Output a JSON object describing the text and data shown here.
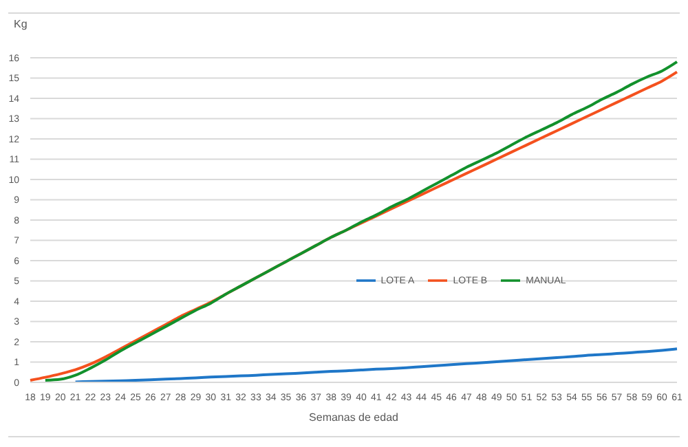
{
  "chart_data": {
    "type": "line",
    "xlabel": "Semanas de edad",
    "ylabel": "Kg",
    "categories": [
      "18",
      "19",
      "20",
      "21",
      "22",
      "23",
      "24",
      "25",
      "26",
      "27",
      "28",
      "29",
      "30",
      "31",
      "32",
      "33",
      "34",
      "35",
      "36",
      "37",
      "38",
      "39",
      "40",
      "41",
      "42",
      "43",
      "44",
      "45",
      "46",
      "47",
      "48",
      "49",
      "50",
      "51",
      "52",
      "53",
      "54",
      "55",
      "56",
      "57",
      "58",
      "59",
      "60",
      "61"
    ],
    "series": [
      {
        "name": "LOTE A",
        "color": "#1f77c8",
        "values": [
          null,
          null,
          null,
          0.02,
          0.04,
          0.06,
          0.08,
          0.1,
          0.13,
          0.16,
          0.19,
          0.22,
          0.26,
          0.29,
          0.32,
          0.35,
          0.39,
          0.42,
          0.46,
          0.5,
          0.54,
          0.57,
          0.61,
          0.65,
          0.68,
          0.72,
          0.77,
          0.82,
          0.87,
          0.92,
          0.97,
          1.02,
          1.07,
          1.12,
          1.17,
          1.22,
          1.27,
          1.33,
          1.37,
          1.42,
          1.47,
          1.52,
          1.58,
          1.65
        ]
      },
      {
        "name": "LOTE B",
        "color": "#f4511e",
        "values": [
          0.1,
          0.25,
          0.42,
          0.62,
          0.9,
          1.25,
          1.65,
          2.05,
          2.45,
          2.85,
          3.25,
          3.6,
          3.95,
          4.35,
          4.75,
          5.15,
          5.55,
          5.95,
          6.35,
          6.75,
          7.15,
          7.5,
          7.85,
          8.2,
          8.55,
          8.9,
          9.25,
          9.6,
          9.95,
          10.3,
          10.65,
          11.0,
          11.35,
          11.7,
          12.05,
          12.4,
          12.75,
          13.1,
          13.45,
          13.8,
          14.15,
          14.5,
          14.85,
          15.3
        ]
      },
      {
        "name": "MANUAL",
        "color": "#12912c",
        "values": [
          null,
          0.1,
          0.15,
          0.35,
          0.7,
          1.1,
          1.55,
          1.95,
          2.35,
          2.75,
          3.15,
          3.55,
          3.9,
          4.35,
          4.75,
          5.15,
          5.55,
          5.95,
          6.35,
          6.75,
          7.15,
          7.5,
          7.9,
          8.25,
          8.65,
          9.0,
          9.4,
          9.8,
          10.2,
          10.6,
          10.95,
          11.3,
          11.7,
          12.1,
          12.45,
          12.8,
          13.2,
          13.55,
          13.95,
          14.3,
          14.7,
          15.05,
          15.35,
          15.8
        ]
      }
    ],
    "ylim": [
      0,
      16
    ],
    "yticks": [
      0,
      1,
      2,
      3,
      4,
      5,
      6,
      7,
      8,
      9,
      10,
      11,
      12,
      13,
      14,
      15,
      16
    ],
    "grid": "y",
    "legend": "center",
    "marker": "none",
    "line_style": "solid"
  }
}
